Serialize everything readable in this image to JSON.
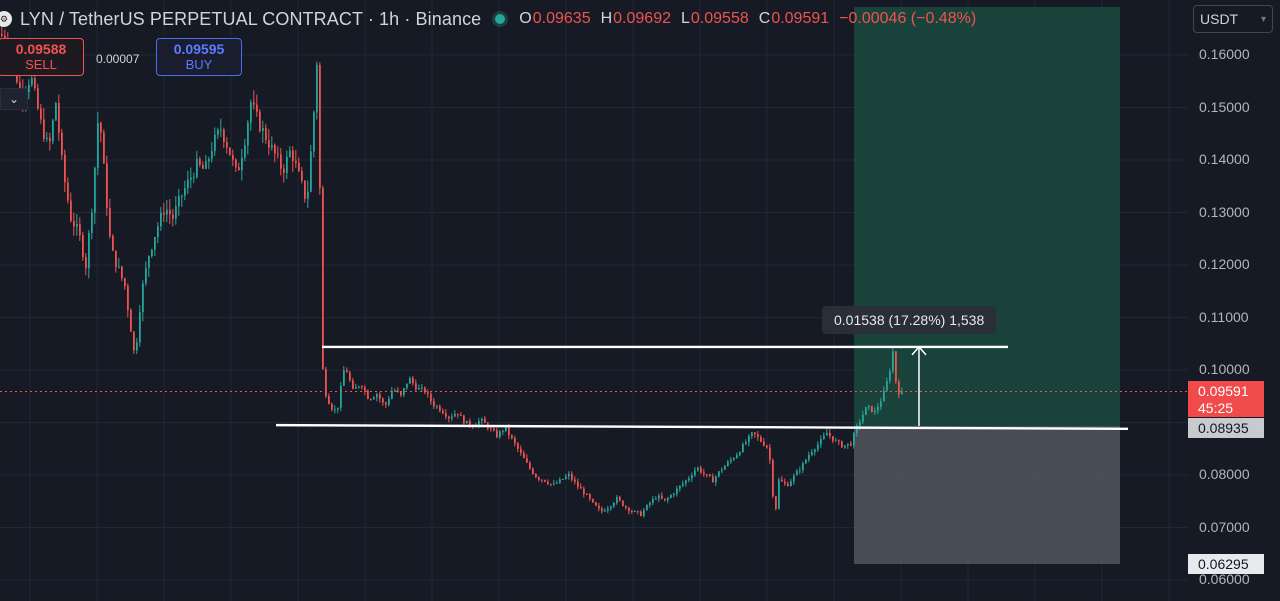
{
  "header": {
    "logo_icon": "alert-badge-icon",
    "title": "LYN / TetherUS PERPETUAL CONTRACT · 1h · Binance",
    "market_status": "market-open-dot",
    "ohlc": {
      "o_label": "O",
      "o": "0.09635",
      "h_label": "H",
      "h": "0.09692",
      "l_label": "L",
      "l": "0.09558",
      "c_label": "C",
      "c": "0.09591",
      "change": "−0.00046 (−0.48%)"
    }
  },
  "trade": {
    "sell_price": "0.09588",
    "sell_label": "SELL",
    "spread": "0.00007",
    "buy_price": "0.09595",
    "buy_label": "BUY"
  },
  "toolbar": {
    "collapse_icon": "chevron-down-icon"
  },
  "currency_selector": {
    "value": "USDT",
    "icon": "chevron-down-icon"
  },
  "price_scale": {
    "labels": [
      "0.16000",
      "0.15000",
      "0.14000",
      "0.13000",
      "0.12000",
      "0.11000",
      "0.10000",
      "0.08000",
      "0.07000",
      "0.06000"
    ],
    "current_price": "0.09591",
    "countdown": "45:25",
    "entry_price": "0.08935",
    "stop_price": "0.06295"
  },
  "measure": {
    "text": "0.01538 (17.28%) 1,538"
  },
  "colors": {
    "up": "#26a69a",
    "down": "#ef5350",
    "background": "#161a25",
    "profit_zone": "#1a4a40",
    "loss_zone": "#5a5d66"
  },
  "chart_data": {
    "type": "candlestick",
    "symbol": "LYN/USDT",
    "interval": "1h",
    "ylim": [
      0.057,
      0.168
    ],
    "close_path": [
      [
        0,
        0.164
      ],
      [
        10,
        0.161
      ],
      [
        20,
        0.152
      ],
      [
        30,
        0.156
      ],
      [
        40,
        0.147
      ],
      [
        48,
        0.142
      ],
      [
        55,
        0.151
      ],
      [
        62,
        0.138
      ],
      [
        70,
        0.129
      ],
      [
        78,
        0.126
      ],
      [
        85,
        0.12
      ],
      [
        92,
        0.133
      ],
      [
        98,
        0.15
      ],
      [
        104,
        0.136
      ],
      [
        110,
        0.123
      ],
      [
        118,
        0.119
      ],
      [
        124,
        0.116
      ],
      [
        130,
        0.108
      ],
      [
        134,
        0.102
      ],
      [
        140,
        0.114
      ],
      [
        148,
        0.122
      ],
      [
        156,
        0.127
      ],
      [
        164,
        0.131
      ],
      [
        172,
        0.129
      ],
      [
        180,
        0.133
      ],
      [
        188,
        0.136
      ],
      [
        196,
        0.139
      ],
      [
        204,
        0.138
      ],
      [
        212,
        0.143
      ],
      [
        220,
        0.146
      ],
      [
        228,
        0.142
      ],
      [
        236,
        0.137
      ],
      [
        244,
        0.144
      ],
      [
        250,
        0.151
      ],
      [
        258,
        0.147
      ],
      [
        266,
        0.144
      ],
      [
        274,
        0.141
      ],
      [
        282,
        0.138
      ],
      [
        290,
        0.142
      ],
      [
        298,
        0.137
      ],
      [
        306,
        0.132
      ],
      [
        312,
        0.146
      ],
      [
        318,
        0.165
      ],
      [
        320,
        0.104
      ],
      [
        324,
        0.096
      ],
      [
        330,
        0.093
      ],
      [
        336,
        0.092
      ],
      [
        344,
        0.101
      ],
      [
        352,
        0.096
      ],
      [
        360,
        0.0975
      ],
      [
        368,
        0.0945
      ],
      [
        376,
        0.0955
      ],
      [
        384,
        0.093
      ],
      [
        392,
        0.0965
      ],
      [
        400,
        0.095
      ],
      [
        408,
        0.0985
      ],
      [
        416,
        0.0965
      ],
      [
        424,
        0.096
      ],
      [
        432,
        0.0935
      ],
      [
        440,
        0.0925
      ],
      [
        448,
        0.091
      ],
      [
        456,
        0.092
      ],
      [
        464,
        0.09
      ],
      [
        472,
        0.0895
      ],
      [
        480,
        0.0905
      ],
      [
        488,
        0.089
      ],
      [
        496,
        0.0875
      ],
      [
        504,
        0.089
      ],
      [
        512,
        0.0865
      ],
      [
        520,
        0.084
      ],
      [
        528,
        0.0815
      ],
      [
        536,
        0.0795
      ],
      [
        544,
        0.079
      ],
      [
        552,
        0.078
      ],
      [
        560,
        0.079
      ],
      [
        568,
        0.08
      ],
      [
        576,
        0.078
      ],
      [
        584,
        0.0765
      ],
      [
        592,
        0.0745
      ],
      [
        600,
        0.073
      ],
      [
        608,
        0.074
      ],
      [
        616,
        0.0755
      ],
      [
        624,
        0.074
      ],
      [
        632,
        0.073
      ],
      [
        640,
        0.0725
      ],
      [
        648,
        0.0745
      ],
      [
        656,
        0.076
      ],
      [
        664,
        0.075
      ],
      [
        672,
        0.0765
      ],
      [
        680,
        0.078
      ],
      [
        688,
        0.0795
      ],
      [
        696,
        0.0815
      ],
      [
        704,
        0.08
      ],
      [
        712,
        0.079
      ],
      [
        720,
        0.081
      ],
      [
        728,
        0.0825
      ],
      [
        736,
        0.084
      ],
      [
        744,
        0.086
      ],
      [
        752,
        0.088
      ],
      [
        760,
        0.0865
      ],
      [
        768,
        0.085
      ],
      [
        774,
        0.072
      ],
      [
        778,
        0.079
      ],
      [
        786,
        0.078
      ],
      [
        794,
        0.08
      ],
      [
        802,
        0.082
      ],
      [
        810,
        0.0845
      ],
      [
        818,
        0.086
      ],
      [
        826,
        0.088
      ],
      [
        834,
        0.0865
      ],
      [
        842,
        0.0855
      ],
      [
        850,
        0.086
      ],
      [
        858,
        0.09
      ],
      [
        866,
        0.093
      ],
      [
        874,
        0.092
      ],
      [
        882,
        0.095
      ],
      [
        888,
        0.099
      ],
      [
        892,
        0.1035
      ],
      [
        896,
        0.096
      ],
      [
        902,
        0.0955
      ]
    ]
  }
}
